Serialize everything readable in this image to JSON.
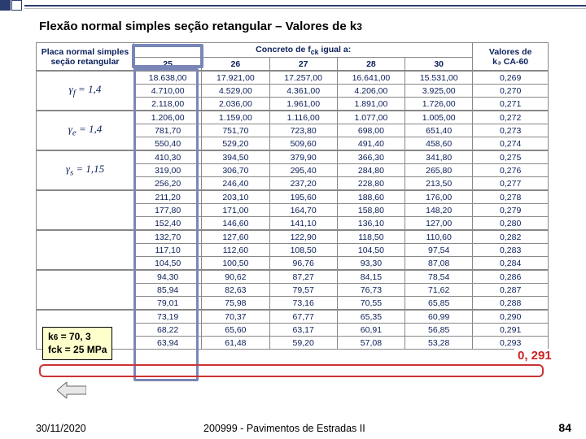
{
  "title_main": "Flexão normal simples seção retangular – Valores de k",
  "title_sub": "3",
  "table": {
    "header_left_l1": "Placa normal simples",
    "header_left_l2": "seção retangular",
    "header_mid": "Concreto de f",
    "header_mid_sub": "ck",
    "header_mid2": " igual a:",
    "header_right_l1": "Valores de",
    "header_right_l2": "k₃ CA-60",
    "cols": [
      "25",
      "26",
      "27",
      "28",
      "30"
    ],
    "row_labels": [
      "γ_f = 1,4",
      "γ_e = 1,4",
      "γ_s = 1,15",
      "",
      "",
      "",
      ""
    ],
    "rows": [
      [
        "18.638,00",
        "17.921,00",
        "17.257,00",
        "16.641,00",
        "15.531,00",
        "0,269"
      ],
      [
        "4.710,00",
        "4.529,00",
        "4.361,00",
        "4.206,00",
        "3.925,00",
        "0,270"
      ],
      [
        "2.118,00",
        "2.036,00",
        "1.961,00",
        "1.891,00",
        "1.726,00",
        "0,271"
      ],
      [
        "1.206,00",
        "1.159,00",
        "1.116,00",
        "1.077,00",
        "1.005,00",
        "0,272"
      ],
      [
        "781,70",
        "751,70",
        "723,80",
        "698,00",
        "651,40",
        "0,273"
      ],
      [
        "550,40",
        "529,20",
        "509,60",
        "491,40",
        "458,60",
        "0,274"
      ],
      [
        "410,30",
        "394,50",
        "379,90",
        "366,30",
        "341,80",
        "0,275"
      ],
      [
        "319,00",
        "306,70",
        "295,40",
        "284,80",
        "265,80",
        "0,276"
      ],
      [
        "256,20",
        "246,40",
        "237,20",
        "228,80",
        "213,50",
        "0,277"
      ],
      [
        "211,20",
        "203,10",
        "195,60",
        "188,60",
        "176,00",
        "0,278"
      ],
      [
        "177,80",
        "171,00",
        "164,70",
        "158,80",
        "148,20",
        "0,279"
      ],
      [
        "152,40",
        "146,60",
        "141,10",
        "136,10",
        "127,00",
        "0,280"
      ],
      [
        "132,70",
        "127,60",
        "122,90",
        "118,50",
        "110,60",
        "0,282"
      ],
      [
        "117,10",
        "112,60",
        "108,50",
        "104,50",
        "97,54",
        "0,283"
      ],
      [
        "104,50",
        "100,50",
        "96,76",
        "93,30",
        "87,08",
        "0,284"
      ],
      [
        "94,30",
        "90,62",
        "87,27",
        "84,15",
        "78,54",
        "0,286"
      ],
      [
        "85,94",
        "82,63",
        "79,57",
        "76,73",
        "71,62",
        "0,287"
      ],
      [
        "79,01",
        "75,98",
        "73,16",
        "70,55",
        "65,85",
        "0,288"
      ],
      [
        "73,19",
        "70,37",
        "67,77",
        "65,35",
        "60,99",
        "0,290"
      ],
      [
        "68,22",
        "65,60",
        "63,17",
        "60,91",
        "56,85",
        "0,291"
      ],
      [
        "63,94",
        "61,48",
        "59,20",
        "57,08",
        "53,28",
        "0,293"
      ]
    ],
    "colors": {
      "text": "#0b1f5a",
      "border": "#888888",
      "highlight_col": "#7a86b8",
      "highlight_row": "#cc3333"
    }
  },
  "box_l1_a": "k",
  "box_l1_sub": "6",
  "box_l1_b": " = 70, 3",
  "box_l2": "fck = 25 MPa",
  "red_value": "0, 291",
  "footer_date": "30/11/2020",
  "footer_course": "200999 - Pavimentos de Estradas II",
  "footer_page": "84"
}
